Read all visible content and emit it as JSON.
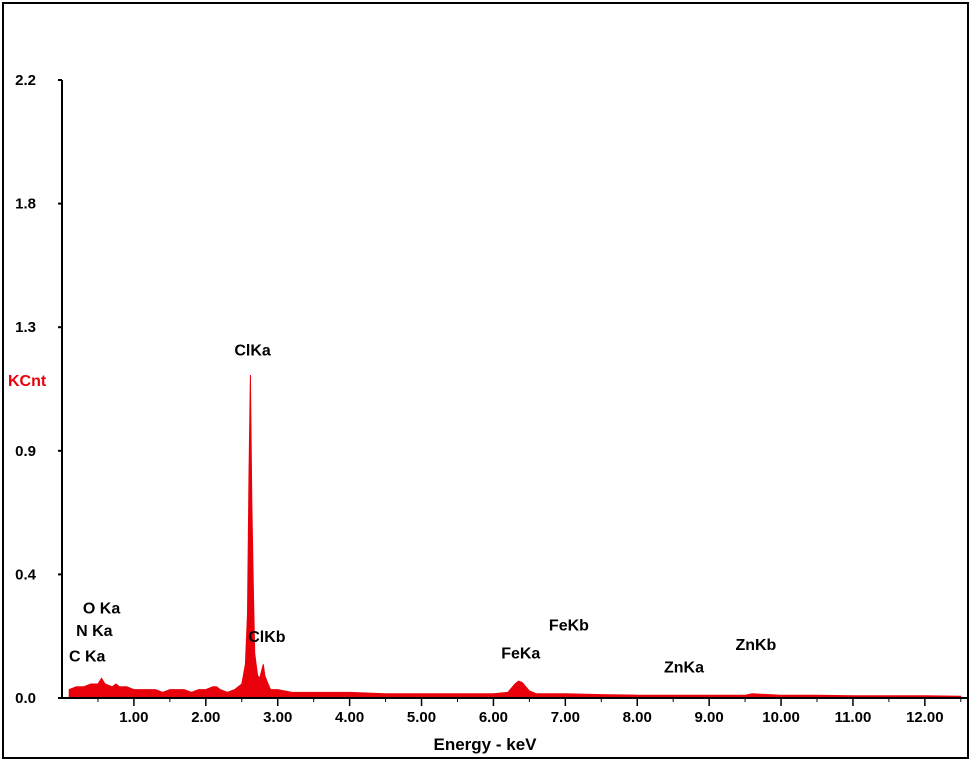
{
  "chart_data": {
    "type": "area",
    "xlabel": "Energy - keV",
    "ylabel": "KCnt",
    "ylabel_color": "#e8000b",
    "series_color": "#e8000b",
    "xlim": [
      0,
      12.6
    ],
    "ylim": [
      0,
      2.2
    ],
    "x_ticks": [
      "1.00",
      "2.00",
      "3.00",
      "4.00",
      "5.00",
      "6.00",
      "7.00",
      "8.00",
      "9.00",
      "10.00",
      "11.00",
      "12.00"
    ],
    "x_tick_values": [
      1,
      2,
      3,
      4,
      5,
      6,
      7,
      8,
      9,
      10,
      11,
      12
    ],
    "y_ticks": [
      "0.0",
      "0.4",
      "0.9",
      "1.3",
      "1.8",
      "2.2"
    ],
    "y_tick_values": [
      0.0,
      0.44,
      0.88,
      1.32,
      1.76,
      2.2
    ],
    "grid": false,
    "series": [
      {
        "x": [
          0.1,
          0.2,
          0.3,
          0.4,
          0.5,
          0.55,
          0.6,
          0.7,
          0.75,
          0.8,
          0.9,
          1.0,
          1.1,
          1.2,
          1.3,
          1.4,
          1.5,
          1.6,
          1.7,
          1.8,
          1.9,
          2.0,
          2.1,
          2.15,
          2.2,
          2.3,
          2.4,
          2.5,
          2.55,
          2.58,
          2.6,
          2.62,
          2.64,
          2.66,
          2.68,
          2.7,
          2.72,
          2.75,
          2.8,
          2.82,
          2.85,
          2.9,
          3.0,
          3.2,
          3.5,
          4.0,
          4.5,
          5.0,
          5.5,
          6.0,
          6.2,
          6.3,
          6.35,
          6.4,
          6.45,
          6.5,
          6.6,
          7.0,
          7.5,
          8.0,
          8.5,
          9.0,
          9.5,
          9.6,
          10.0,
          10.5,
          11.0,
          11.5,
          12.0,
          12.5
        ],
        "y": [
          0.03,
          0.04,
          0.04,
          0.05,
          0.05,
          0.07,
          0.05,
          0.04,
          0.05,
          0.04,
          0.04,
          0.03,
          0.03,
          0.03,
          0.03,
          0.02,
          0.03,
          0.03,
          0.03,
          0.02,
          0.03,
          0.03,
          0.04,
          0.04,
          0.03,
          0.02,
          0.03,
          0.05,
          0.12,
          0.3,
          0.8,
          1.15,
          0.7,
          0.4,
          0.16,
          0.12,
          0.08,
          0.07,
          0.12,
          0.08,
          0.06,
          0.03,
          0.03,
          0.02,
          0.02,
          0.02,
          0.015,
          0.015,
          0.015,
          0.015,
          0.02,
          0.05,
          0.06,
          0.055,
          0.04,
          0.025,
          0.015,
          0.015,
          0.012,
          0.01,
          0.01,
          0.01,
          0.01,
          0.015,
          0.01,
          0.01,
          0.008,
          0.008,
          0.008,
          0.006
        ]
      }
    ],
    "annotations": [
      {
        "text": "O Ka",
        "x": 0.55,
        "y": 0.3
      },
      {
        "text": "N Ka",
        "x": 0.45,
        "y": 0.22
      },
      {
        "text": "C Ka",
        "x": 0.35,
        "y": 0.13
      },
      {
        "text": "ClKa",
        "x": 2.65,
        "y": 1.22
      },
      {
        "text": "ClKb",
        "x": 2.85,
        "y": 0.2
      },
      {
        "text": "FeKa",
        "x": 6.38,
        "y": 0.14
      },
      {
        "text": "FeKb",
        "x": 7.05,
        "y": 0.24
      },
      {
        "text": "ZnKa",
        "x": 8.65,
        "y": 0.09
      },
      {
        "text": "ZnKb",
        "x": 9.65,
        "y": 0.17
      }
    ]
  }
}
